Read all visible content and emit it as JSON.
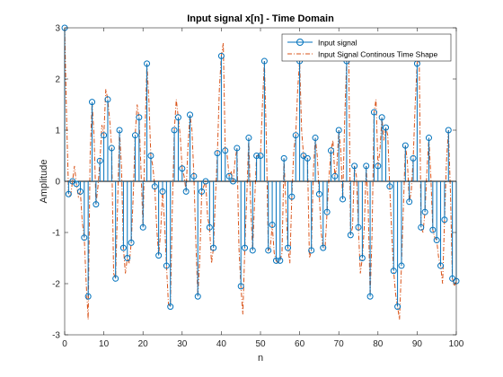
{
  "chart_data": {
    "type": "stem",
    "title": "Input signal x[n] - Time Domain",
    "xlabel": "n",
    "ylabel": "Amplitude",
    "xlim": [
      0,
      100
    ],
    "ylim": [
      -3,
      3
    ],
    "xticks": [
      0,
      10,
      20,
      30,
      40,
      50,
      60,
      70,
      80,
      90,
      100
    ],
    "yticks": [
      -3,
      -2,
      -1,
      0,
      1,
      2,
      3
    ],
    "grid": false,
    "legend_position": "top-right",
    "series": [
      {
        "name": "Input signal",
        "style": "stem",
        "color": "#0072BD",
        "x": [
          0,
          1,
          2,
          3,
          4,
          5,
          6,
          7,
          8,
          9,
          10,
          11,
          12,
          13,
          14,
          15,
          16,
          17,
          18,
          19,
          20,
          21,
          22,
          23,
          24,
          25,
          26,
          27,
          28,
          29,
          30,
          31,
          32,
          33,
          34,
          35,
          36,
          37,
          38,
          39,
          40,
          41,
          42,
          43,
          44,
          45,
          46,
          47,
          48,
          49,
          50,
          51,
          52,
          53,
          54,
          55,
          56,
          57,
          58,
          59,
          60,
          61,
          62,
          63,
          64,
          65,
          66,
          67,
          68,
          69,
          70,
          71,
          72,
          73,
          74,
          75,
          76,
          77,
          78,
          79,
          80,
          81,
          82,
          83,
          84,
          85,
          86,
          87,
          88,
          89,
          90,
          91,
          92,
          93,
          94,
          95,
          96,
          97,
          98,
          99,
          100
        ],
        "y": [
          3.0,
          -0.25,
          0.0,
          -0.05,
          -0.2,
          -1.1,
          -2.25,
          1.55,
          -0.45,
          0.4,
          0.9,
          1.6,
          0.65,
          -1.9,
          1.0,
          -1.3,
          -1.5,
          -1.2,
          0.9,
          1.25,
          -0.9,
          2.3,
          0.5,
          -0.1,
          -1.45,
          -0.2,
          -1.65,
          -2.45,
          1.0,
          1.25,
          0.25,
          -0.2,
          1.3,
          0.1,
          -2.25,
          -0.2,
          0.0,
          -0.9,
          -1.3,
          0.55,
          2.45,
          0.6,
          0.1,
          0.0,
          0.65,
          -2.05,
          -1.3,
          0.85,
          -1.35,
          0.5,
          0.5,
          2.35,
          -1.35,
          -0.85,
          -1.55,
          -1.55,
          0.45,
          -1.3,
          -0.3,
          0.9,
          2.35,
          0.5,
          0.45,
          -1.35,
          0.85,
          -0.25,
          -1.3,
          -0.6,
          0.6,
          0.1,
          1.0,
          -0.35,
          2.35,
          -1.05,
          0.3,
          -0.9,
          -1.5,
          0.3,
          -2.25,
          1.35,
          0.3,
          1.25,
          1.05,
          -0.1,
          -1.75,
          -2.45,
          -1.65,
          0.7,
          -0.4,
          0.45,
          2.3,
          -0.9,
          -0.6,
          0.85,
          -0.95,
          -1.15,
          -1.65,
          -0.75,
          1.0,
          -1.9,
          -1.95
        ]
      },
      {
        "name": "Input Signal Continous Time Shape",
        "style": "dash-dot line",
        "color": "#D95319",
        "x": [
          0,
          0.5,
          1,
          1.5,
          2,
          2.5,
          3,
          3.5,
          4,
          4.5,
          5,
          5.5,
          6,
          6.5,
          7,
          7.5,
          8,
          8.5,
          9,
          9.5,
          10,
          10.5,
          11,
          11.5,
          12,
          12.5,
          13,
          13.5,
          14,
          14.5,
          15,
          15.5,
          16,
          16.5,
          17,
          17.5,
          18,
          18.5,
          19,
          19.5,
          20,
          20.5,
          21,
          21.5,
          22,
          22.5,
          23,
          23.5,
          24,
          24.5,
          25,
          25.5,
          26,
          26.5,
          27,
          27.5,
          28,
          28.5,
          29,
          29.5,
          30,
          30.5,
          31,
          31.5,
          32,
          32.5,
          33,
          33.5,
          34,
          34.5,
          35,
          35.5,
          36,
          36.5,
          37,
          37.5,
          38,
          38.5,
          39,
          39.5,
          40,
          40.5,
          41,
          41.5,
          42,
          42.5,
          43,
          43.5,
          44,
          44.5,
          45,
          45.5,
          46,
          46.5,
          47,
          47.5,
          48,
          48.5,
          49,
          49.5,
          50,
          50.5,
          51,
          51.5,
          52,
          52.5,
          53,
          53.5,
          54,
          54.5,
          55,
          55.5,
          56,
          56.5,
          57,
          57.5,
          58,
          58.5,
          59,
          59.5,
          60,
          60.5,
          61,
          61.5,
          62,
          62.5,
          63,
          63.5,
          64,
          64.5,
          65,
          65.5,
          66,
          66.5,
          67,
          67.5,
          68,
          68.5,
          69,
          69.5,
          70,
          70.5,
          71,
          71.5,
          72,
          72.5,
          73,
          73.5,
          74,
          74.5,
          75,
          75.5,
          76,
          76.5,
          77,
          77.5,
          78,
          78.5,
          79,
          79.5,
          80,
          80.5,
          81,
          81.5,
          82,
          82.5,
          83,
          83.5,
          84,
          84.5,
          85,
          85.5,
          86,
          86.5,
          87,
          87.5,
          88,
          88.5,
          89,
          89.5,
          90,
          90.5,
          91,
          91.5,
          92,
          92.5,
          93,
          93.5,
          94,
          94.5,
          95,
          95.5,
          96,
          96.5,
          97,
          97.5,
          98,
          98.5,
          99,
          99.5,
          100
        ],
        "y": [
          3.0,
          1.2,
          -0.25,
          -0.3,
          0.0,
          0.3,
          -0.05,
          -0.3,
          -0.2,
          -0.8,
          -1.1,
          -2.0,
          -2.7,
          0.5,
          1.55,
          0.9,
          -0.45,
          -0.1,
          0.4,
          1.1,
          0.9,
          1.8,
          1.6,
          1.2,
          0.65,
          -1.8,
          -1.9,
          -0.5,
          1.0,
          0.3,
          -1.3,
          -1.8,
          -1.5,
          -1.6,
          -1.2,
          -0.3,
          0.9,
          1.5,
          1.25,
          0.2,
          -0.9,
          0.9,
          2.3,
          1.6,
          0.5,
          0.3,
          -0.1,
          -0.9,
          -1.45,
          -1.0,
          -0.2,
          -0.8,
          -1.65,
          -2.4,
          -2.45,
          -0.5,
          1.0,
          1.6,
          1.25,
          0.9,
          0.25,
          0.1,
          -0.2,
          0.7,
          1.3,
          1.0,
          0.1,
          -1.2,
          -2.25,
          -1.5,
          -0.2,
          -0.1,
          0.0,
          -0.7,
          -0.9,
          -1.6,
          -1.3,
          -0.3,
          0.55,
          1.8,
          2.45,
          2.7,
          0.6,
          0.5,
          0.1,
          0.2,
          0.0,
          0.4,
          0.65,
          -1.3,
          -2.05,
          -2.6,
          -1.3,
          -0.3,
          0.85,
          -0.5,
          -1.35,
          -0.4,
          0.5,
          0.5,
          0.5,
          1.5,
          2.35,
          0.8,
          -1.35,
          -1.3,
          -0.85,
          -1.4,
          -1.55,
          -1.6,
          -1.55,
          -1.4,
          0.45,
          -0.5,
          -1.3,
          -1.6,
          -0.3,
          0.6,
          0.9,
          1.8,
          2.35,
          1.0,
          0.5,
          0.45,
          0.45,
          -1.5,
          -1.35,
          0.2,
          0.85,
          0.5,
          -0.25,
          -1.0,
          -1.3,
          -1.3,
          -0.6,
          0.1,
          0.6,
          0.8,
          0.1,
          0.3,
          1.0,
          0.6,
          -0.35,
          1.2,
          2.35,
          2.7,
          -1.05,
          -0.9,
          0.3,
          0.1,
          -0.9,
          -1.8,
          -1.5,
          -0.9,
          0.3,
          -0.5,
          -2.25,
          -1.0,
          1.35,
          1.6,
          0.3,
          0.6,
          1.25,
          0.8,
          1.05,
          0.9,
          -0.1,
          -1.0,
          -1.75,
          -2.2,
          -2.45,
          -2.7,
          -1.65,
          -0.5,
          0.7,
          0.4,
          -0.4,
          -0.2,
          0.45,
          1.5,
          2.3,
          2.6,
          -0.9,
          -1.0,
          -0.6,
          0.2,
          0.85,
          0.1,
          -0.95,
          -1.1,
          -1.15,
          -1.5,
          -1.65,
          -2.0,
          -0.75,
          0.4,
          1.0,
          -0.2,
          -1.9,
          -2.05,
          -1.95
        ]
      }
    ]
  }
}
